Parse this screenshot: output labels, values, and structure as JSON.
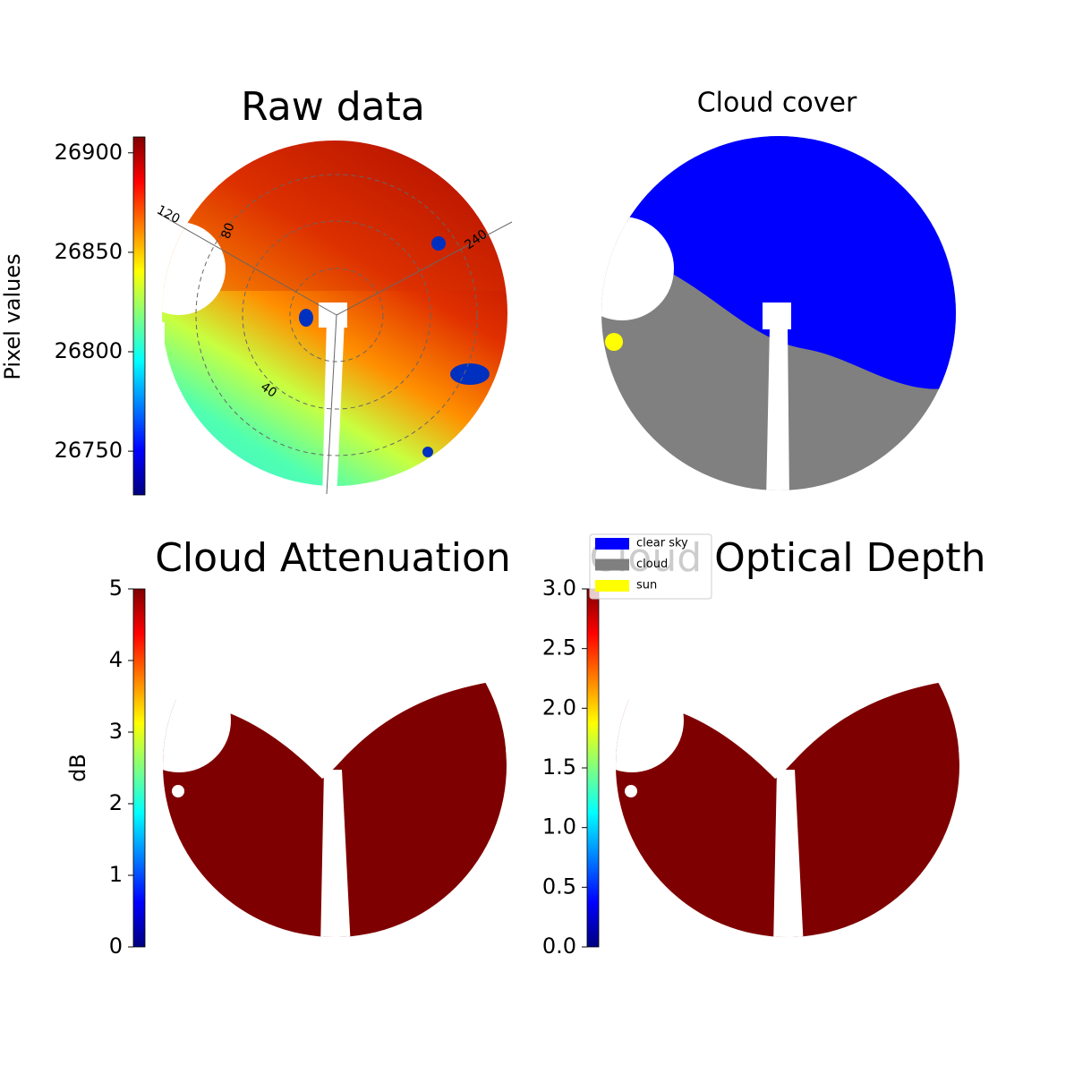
{
  "chart_data": [
    {
      "type": "image",
      "title": "Raw data",
      "colorbar": {
        "label": "Pixel values",
        "colormap": "jet",
        "ylim": [
          26728,
          26908
        ],
        "yticks": [
          26750,
          26800,
          26850,
          26900
        ]
      },
      "polar_labels": [
        "120",
        "80",
        "40",
        "240"
      ]
    },
    {
      "type": "image",
      "title": "Cloud cover",
      "legend": [
        {
          "name": "clear sky",
          "color": "#0000ff"
        },
        {
          "name": "cloud",
          "color": "#808080"
        },
        {
          "name": "sun",
          "color": "#ffff00"
        }
      ]
    },
    {
      "type": "image",
      "title": "Cloud Attenuation",
      "colorbar": {
        "label": "dB",
        "colormap": "jet",
        "ylim": [
          0,
          5
        ],
        "yticks": [
          0,
          1,
          2,
          3,
          4,
          5
        ]
      }
    },
    {
      "type": "image",
      "title": "Cloud Optical Depth",
      "colorbar": {
        "colormap": "jet",
        "ylim": [
          0,
          3
        ],
        "yticks": [
          {
            "value": 0,
            "label": "0.0"
          },
          0.5,
          {
            "value": 1,
            "label": "1.0"
          },
          1.5,
          {
            "value": 2,
            "label": "2.0"
          },
          2.5,
          {
            "value": 3,
            "label": "3.0"
          }
        ]
      }
    }
  ]
}
